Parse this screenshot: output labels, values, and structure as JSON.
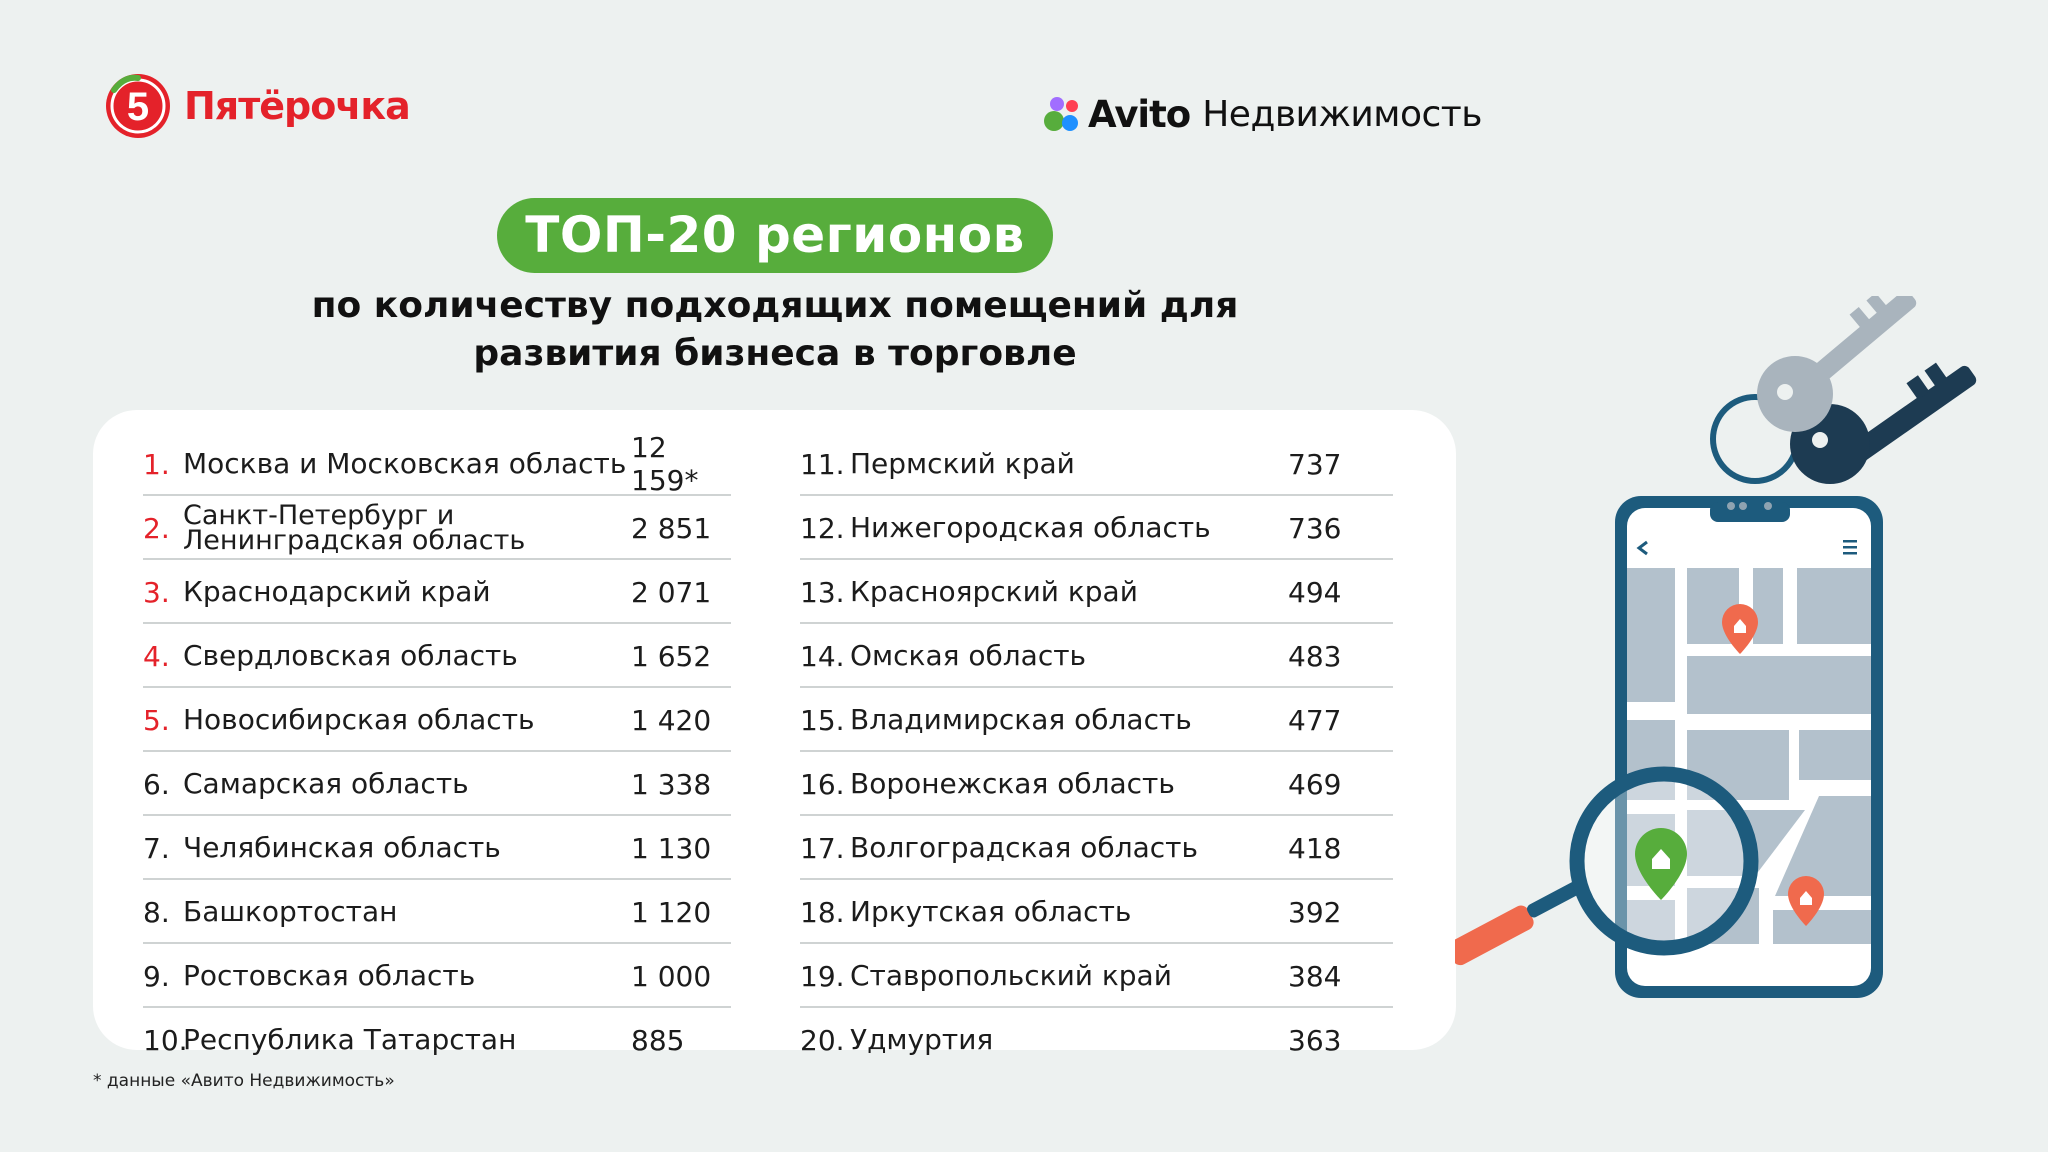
{
  "brand_left": {
    "name": "Пятёрочка",
    "badge": "5"
  },
  "brand_right": {
    "name": "Avito",
    "sub": "Недвижимость"
  },
  "title_pill": "ТОП-20 регионов",
  "subtitle_line1": "по количеству подходящих помещений для",
  "subtitle_line2": "развития бизнеса в торговле",
  "regions_left": [
    {
      "rank": "1.",
      "name": "Москва и Московская область",
      "value": "12 159*"
    },
    {
      "rank": "2.",
      "name": "Санкт-Петербург и Ленинградская область",
      "value": "2 851"
    },
    {
      "rank": "3.",
      "name": "Краснодарский край",
      "value": "2 071"
    },
    {
      "rank": "4.",
      "name": "Свердловская область",
      "value": "1 652"
    },
    {
      "rank": "5.",
      "name": "Новосибирская область",
      "value": "1 420"
    },
    {
      "rank": "6.",
      "name": "Самарская область",
      "value": "1 338"
    },
    {
      "rank": "7.",
      "name": "Челябинская область",
      "value": "1 130"
    },
    {
      "rank": "8.",
      "name": "Башкортостан",
      "value": "1 120"
    },
    {
      "rank": "9.",
      "name": "Ростовская область",
      "value": "1 000"
    },
    {
      "rank": "10.",
      "name": "Республика Татарстан",
      "value": "885"
    }
  ],
  "regions_right": [
    {
      "rank": "11.",
      "name": "Пермский край",
      "value": "737"
    },
    {
      "rank": "12.",
      "name": "Нижегородская область",
      "value": "736"
    },
    {
      "rank": "13.",
      "name": "Красноярский край",
      "value": "494"
    },
    {
      "rank": "14.",
      "name": "Омская область",
      "value": "483"
    },
    {
      "rank": "15.",
      "name": "Владимирская область",
      "value": "477"
    },
    {
      "rank": "16.",
      "name": "Воронежская область",
      "value": "469"
    },
    {
      "rank": "17.",
      "name": "Волгоградская область",
      "value": "418"
    },
    {
      "rank": "18.",
      "name": "Иркутская область",
      "value": "392"
    },
    {
      "rank": "19.",
      "name": "Ставропольский край",
      "value": "384"
    },
    {
      "rank": "20.",
      "name": "Удмуртия",
      "value": "363"
    }
  ],
  "footnote": "* данные «Авито Недвижимость»",
  "colors": {
    "accent_green": "#57ad3c",
    "accent_red": "#e4222a",
    "background": "#edf1f0"
  },
  "icons": [
    "pyaterochka-logo-icon",
    "avito-dots-icon",
    "keys-icon",
    "phone-map-icon",
    "magnifier-icon",
    "map-pin-icon",
    "back-arrow-icon",
    "menu-icon"
  ]
}
